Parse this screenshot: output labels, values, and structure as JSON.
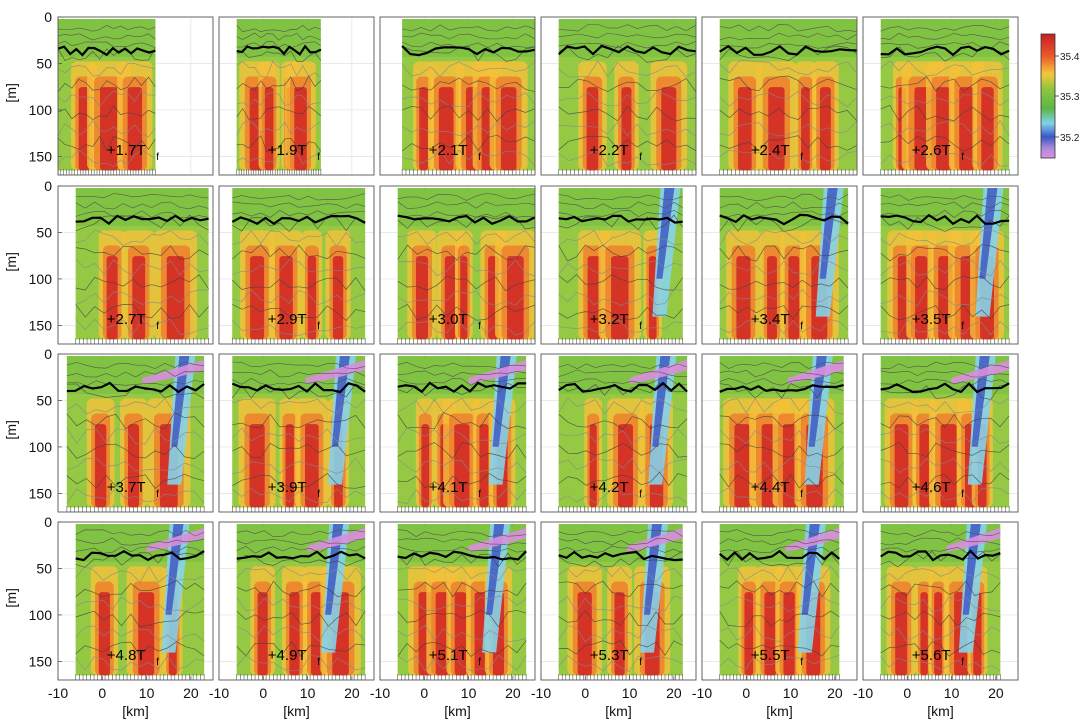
{
  "chart_data": {
    "type": "heatmap",
    "layout": "small-multiples 4x6",
    "x_label": "[km]",
    "y_label": "[m]",
    "x_ticks": [
      -10,
      0,
      10,
      20
    ],
    "y_ticks": [
      0,
      50,
      100,
      150
    ],
    "xlim": [
      -10,
      25
    ],
    "ylim": [
      0,
      170
    ],
    "y_reversed": true,
    "grid": true,
    "colorbar": {
      "ticks": [
        "35.4",
        "35.3",
        "35.2"
      ],
      "tick_values": [
        35.4,
        35.3,
        35.2
      ],
      "range": [
        35.15,
        35.45
      ],
      "colors": [
        "#d63027",
        "#f08a2c",
        "#f2d03a",
        "#8ac44b",
        "#5ab646",
        "#7ed0e6",
        "#3f59c4",
        "#b98ad6",
        "#e08fe0"
      ]
    },
    "panels": [
      {
        "label": "+1.7T",
        "sub": "f",
        "x_extent": [
          -10,
          12
        ]
      },
      {
        "label": "+1.9T",
        "sub": "f",
        "x_extent": [
          -6,
          13
        ]
      },
      {
        "label": "+2.1T",
        "sub": "f",
        "x_extent": [
          -5,
          25
        ]
      },
      {
        "label": "+2.2T",
        "sub": "f",
        "x_extent": [
          -6,
          25
        ]
      },
      {
        "label": "+2.4T",
        "sub": "f",
        "x_extent": [
          -6,
          25
        ]
      },
      {
        "label": "+2.6T",
        "sub": "f",
        "x_extent": [
          -6,
          23
        ]
      },
      {
        "label": "+2.7T",
        "sub": "f",
        "x_extent": [
          -6,
          24
        ]
      },
      {
        "label": "+2.9T",
        "sub": "f",
        "x_extent": [
          -7,
          23
        ]
      },
      {
        "label": "+3.0T",
        "sub": "f",
        "x_extent": [
          -6,
          25
        ]
      },
      {
        "label": "+3.2T",
        "sub": "f",
        "x_extent": [
          -6,
          22
        ]
      },
      {
        "label": "+3.4T",
        "sub": "f",
        "x_extent": [
          -6,
          23
        ]
      },
      {
        "label": "+3.5T",
        "sub": "f",
        "x_extent": [
          -6,
          23
        ]
      },
      {
        "label": "+3.7T",
        "sub": "f",
        "x_extent": [
          -8,
          23
        ]
      },
      {
        "label": "+3.9T",
        "sub": "f",
        "x_extent": [
          -7,
          23
        ]
      },
      {
        "label": "+4.1T",
        "sub": "f",
        "x_extent": [
          -6,
          23
        ]
      },
      {
        "label": "+4.2T",
        "sub": "f",
        "x_extent": [
          -6,
          23
        ]
      },
      {
        "label": "+4.4T",
        "sub": "f",
        "x_extent": [
          -6,
          22
        ]
      },
      {
        "label": "+4.6T",
        "sub": "f",
        "x_extent": [
          -6,
          23
        ]
      },
      {
        "label": "+4.8T",
        "sub": "f",
        "x_extent": [
          -6,
          23
        ]
      },
      {
        "label": "+4.9T",
        "sub": "f",
        "x_extent": [
          -6,
          23
        ]
      },
      {
        "label": "+5.1T",
        "sub": "f",
        "x_extent": [
          -6,
          23
        ]
      },
      {
        "label": "+5.3T",
        "sub": "f",
        "x_extent": [
          -6,
          22
        ]
      },
      {
        "label": "+5.5T",
        "sub": "f",
        "x_extent": [
          -6,
          21
        ]
      },
      {
        "label": "+5.6T",
        "sub": "f",
        "x_extent": [
          -6,
          21
        ]
      }
    ]
  }
}
